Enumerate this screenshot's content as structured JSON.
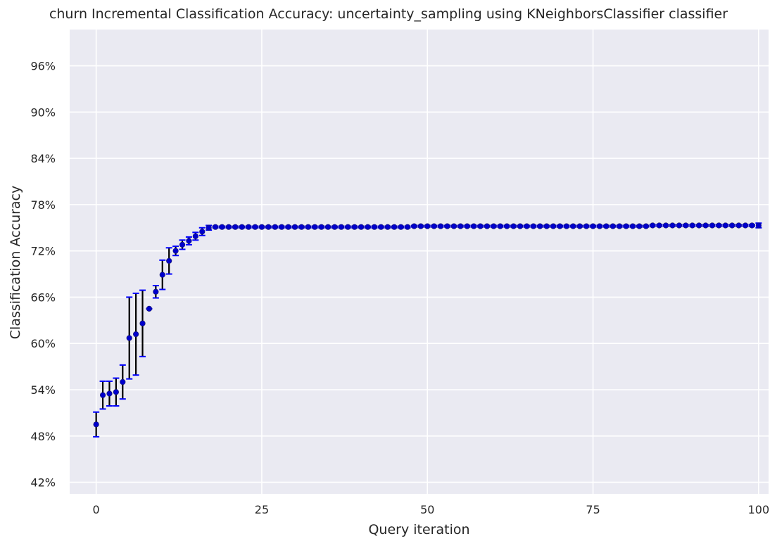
{
  "chart_data": {
    "type": "scatter",
    "title": "churn Incremental Classification Accuracy: uncertainty_sampling using KNeighborsClassifier classifier",
    "xlabel": "Query iteration",
    "ylabel": "Classification Accuracy",
    "xlim": [
      -4,
      101.5
    ],
    "ylim": [
      40.5,
      100.7
    ],
    "xticks": [
      0,
      25,
      50,
      75,
      100
    ],
    "yticks": [
      42,
      48,
      54,
      60,
      66,
      72,
      78,
      84,
      90,
      96
    ],
    "ytick_labels": [
      "42%",
      "48%",
      "54%",
      "60%",
      "66%",
      "72%",
      "78%",
      "84%",
      "90%",
      "96%"
    ],
    "grid": true,
    "background": "#eaeaf2",
    "colors": {
      "marker": "#0000cc",
      "cap": "#0000ff",
      "errorbar": "#000000",
      "grid": "#ffffff"
    },
    "x": [
      0,
      1,
      2,
      3,
      4,
      5,
      6,
      7,
      8,
      9,
      10,
      11,
      12,
      13,
      14,
      15,
      16,
      17,
      18,
      19,
      20,
      21,
      22,
      23,
      24,
      25,
      26,
      27,
      28,
      29,
      30,
      31,
      32,
      33,
      34,
      35,
      36,
      37,
      38,
      39,
      40,
      41,
      42,
      43,
      44,
      45,
      46,
      47,
      48,
      49,
      50,
      51,
      52,
      53,
      54,
      55,
      56,
      57,
      58,
      59,
      60,
      61,
      62,
      63,
      64,
      65,
      66,
      67,
      68,
      69,
      70,
      71,
      72,
      73,
      74,
      75,
      76,
      77,
      78,
      79,
      80,
      81,
      82,
      83,
      84,
      85,
      86,
      87,
      88,
      89,
      90,
      91,
      92,
      93,
      94,
      95,
      96,
      97,
      98,
      99,
      100
    ],
    "y": [
      49.5,
      53.3,
      53.5,
      53.7,
      55.0,
      60.7,
      61.2,
      62.6,
      64.5,
      66.7,
      68.9,
      70.7,
      72.0,
      72.8,
      73.3,
      73.9,
      74.5,
      75.0,
      75.1,
      75.1,
      75.1,
      75.1,
      75.1,
      75.1,
      75.1,
      75.1,
      75.1,
      75.1,
      75.1,
      75.1,
      75.1,
      75.1,
      75.1,
      75.1,
      75.1,
      75.1,
      75.1,
      75.1,
      75.1,
      75.1,
      75.1,
      75.1,
      75.1,
      75.1,
      75.1,
      75.1,
      75.1,
      75.1,
      75.2,
      75.2,
      75.2,
      75.2,
      75.2,
      75.2,
      75.2,
      75.2,
      75.2,
      75.2,
      75.2,
      75.2,
      75.2,
      75.2,
      75.2,
      75.2,
      75.2,
      75.2,
      75.2,
      75.2,
      75.2,
      75.2,
      75.2,
      75.2,
      75.2,
      75.2,
      75.2,
      75.2,
      75.2,
      75.2,
      75.2,
      75.2,
      75.2,
      75.2,
      75.2,
      75.2,
      75.3,
      75.3,
      75.3,
      75.3,
      75.3,
      75.3,
      75.3,
      75.3,
      75.3,
      75.3,
      75.3,
      75.3,
      75.3,
      75.3,
      75.3,
      75.3,
      75.3
    ],
    "yerr": [
      1.6,
      1.8,
      1.6,
      1.8,
      2.2,
      5.3,
      5.3,
      4.3,
      0.0,
      0.8,
      1.9,
      1.7,
      0.6,
      0.6,
      0.5,
      0.5,
      0.5,
      0.3,
      0.1,
      0.1,
      0.1,
      0.1,
      0.1,
      0.1,
      0.1,
      0.1,
      0.1,
      0.1,
      0.1,
      0.1,
      0.1,
      0.1,
      0.1,
      0.1,
      0.1,
      0.1,
      0.1,
      0.1,
      0.1,
      0.1,
      0.1,
      0.1,
      0.1,
      0.1,
      0.1,
      0.1,
      0.1,
      0.1,
      0.1,
      0.1,
      0.1,
      0.1,
      0.1,
      0.1,
      0.1,
      0.1,
      0.1,
      0.1,
      0.1,
      0.1,
      0.1,
      0.1,
      0.1,
      0.1,
      0.1,
      0.1,
      0.1,
      0.1,
      0.1,
      0.1,
      0.1,
      0.1,
      0.1,
      0.1,
      0.1,
      0.1,
      0.1,
      0.1,
      0.1,
      0.1,
      0.1,
      0.1,
      0.1,
      0.1,
      0.1,
      0.1,
      0.1,
      0.1,
      0.1,
      0.1,
      0.1,
      0.1,
      0.1,
      0.1,
      0.1,
      0.1,
      0.1,
      0.1,
      0.1,
      0.1,
      0.3
    ]
  }
}
